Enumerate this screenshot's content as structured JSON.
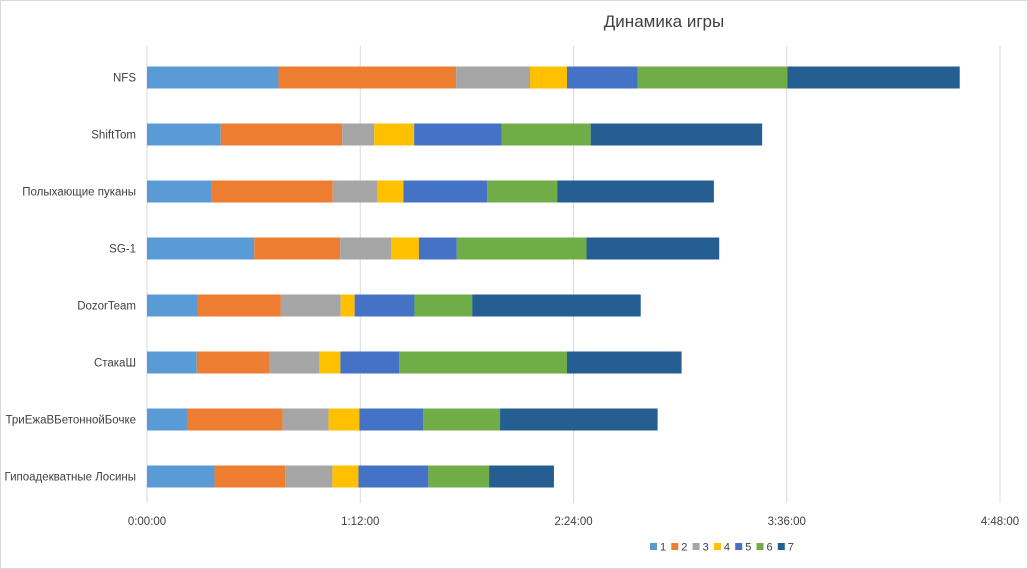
{
  "chart_data": {
    "type": "bar",
    "orientation": "horizontal",
    "stacked": true,
    "title": "Динамика игры",
    "xlabel": "",
    "ylabel": "",
    "categories": [
      "NFS",
      "ShiftTom",
      "Полыхающие пуканы",
      "SG-1",
      "DozorTeam",
      "СтакаШ",
      "ТриЕжаВБетоннойБочке",
      "Гипоадекватные Лосины"
    ],
    "x_unit": "minutes",
    "xlim": [
      0,
      288
    ],
    "xticks": [
      0,
      72,
      144,
      216,
      288
    ],
    "xtick_labels": [
      "0:00:00",
      "1:12:00",
      "2:24:00",
      "3:36:00",
      "4:48:00"
    ],
    "grid": "vertical",
    "legend_position": "bottom-right",
    "series": [
      {
        "name": "1",
        "color": "#5b9bd5",
        "values": [
          44.4,
          24.9,
          21.8,
          36.2,
          17.2,
          16.8,
          13.5,
          22.8
        ]
      },
      {
        "name": "2",
        "color": "#ed7d31",
        "values": [
          60.0,
          41.0,
          40.9,
          29.0,
          28.0,
          24.6,
          32.3,
          23.9
        ]
      },
      {
        "name": "3",
        "color": "#a5a5a5",
        "values": [
          24.9,
          10.8,
          15.1,
          17.2,
          20.2,
          16.8,
          15.5,
          15.9
        ]
      },
      {
        "name": "4",
        "color": "#ffc000",
        "values": [
          12.5,
          13.5,
          8.8,
          9.4,
          4.7,
          7.1,
          10.4,
          8.8
        ]
      },
      {
        "name": "5",
        "color": "#4472c4",
        "values": [
          23.9,
          29.6,
          28.3,
          12.8,
          20.2,
          19.9,
          21.5,
          23.6
        ]
      },
      {
        "name": "6",
        "color": "#70ad47",
        "values": [
          50.5,
          30.0,
          23.6,
          43.8,
          19.5,
          56.6,
          26.0,
          20.5
        ]
      },
      {
        "name": "7",
        "color": "#255e91",
        "values": [
          58.2,
          57.9,
          52.9,
          44.8,
          56.9,
          38.7,
          53.2,
          21.9
        ]
      }
    ]
  }
}
